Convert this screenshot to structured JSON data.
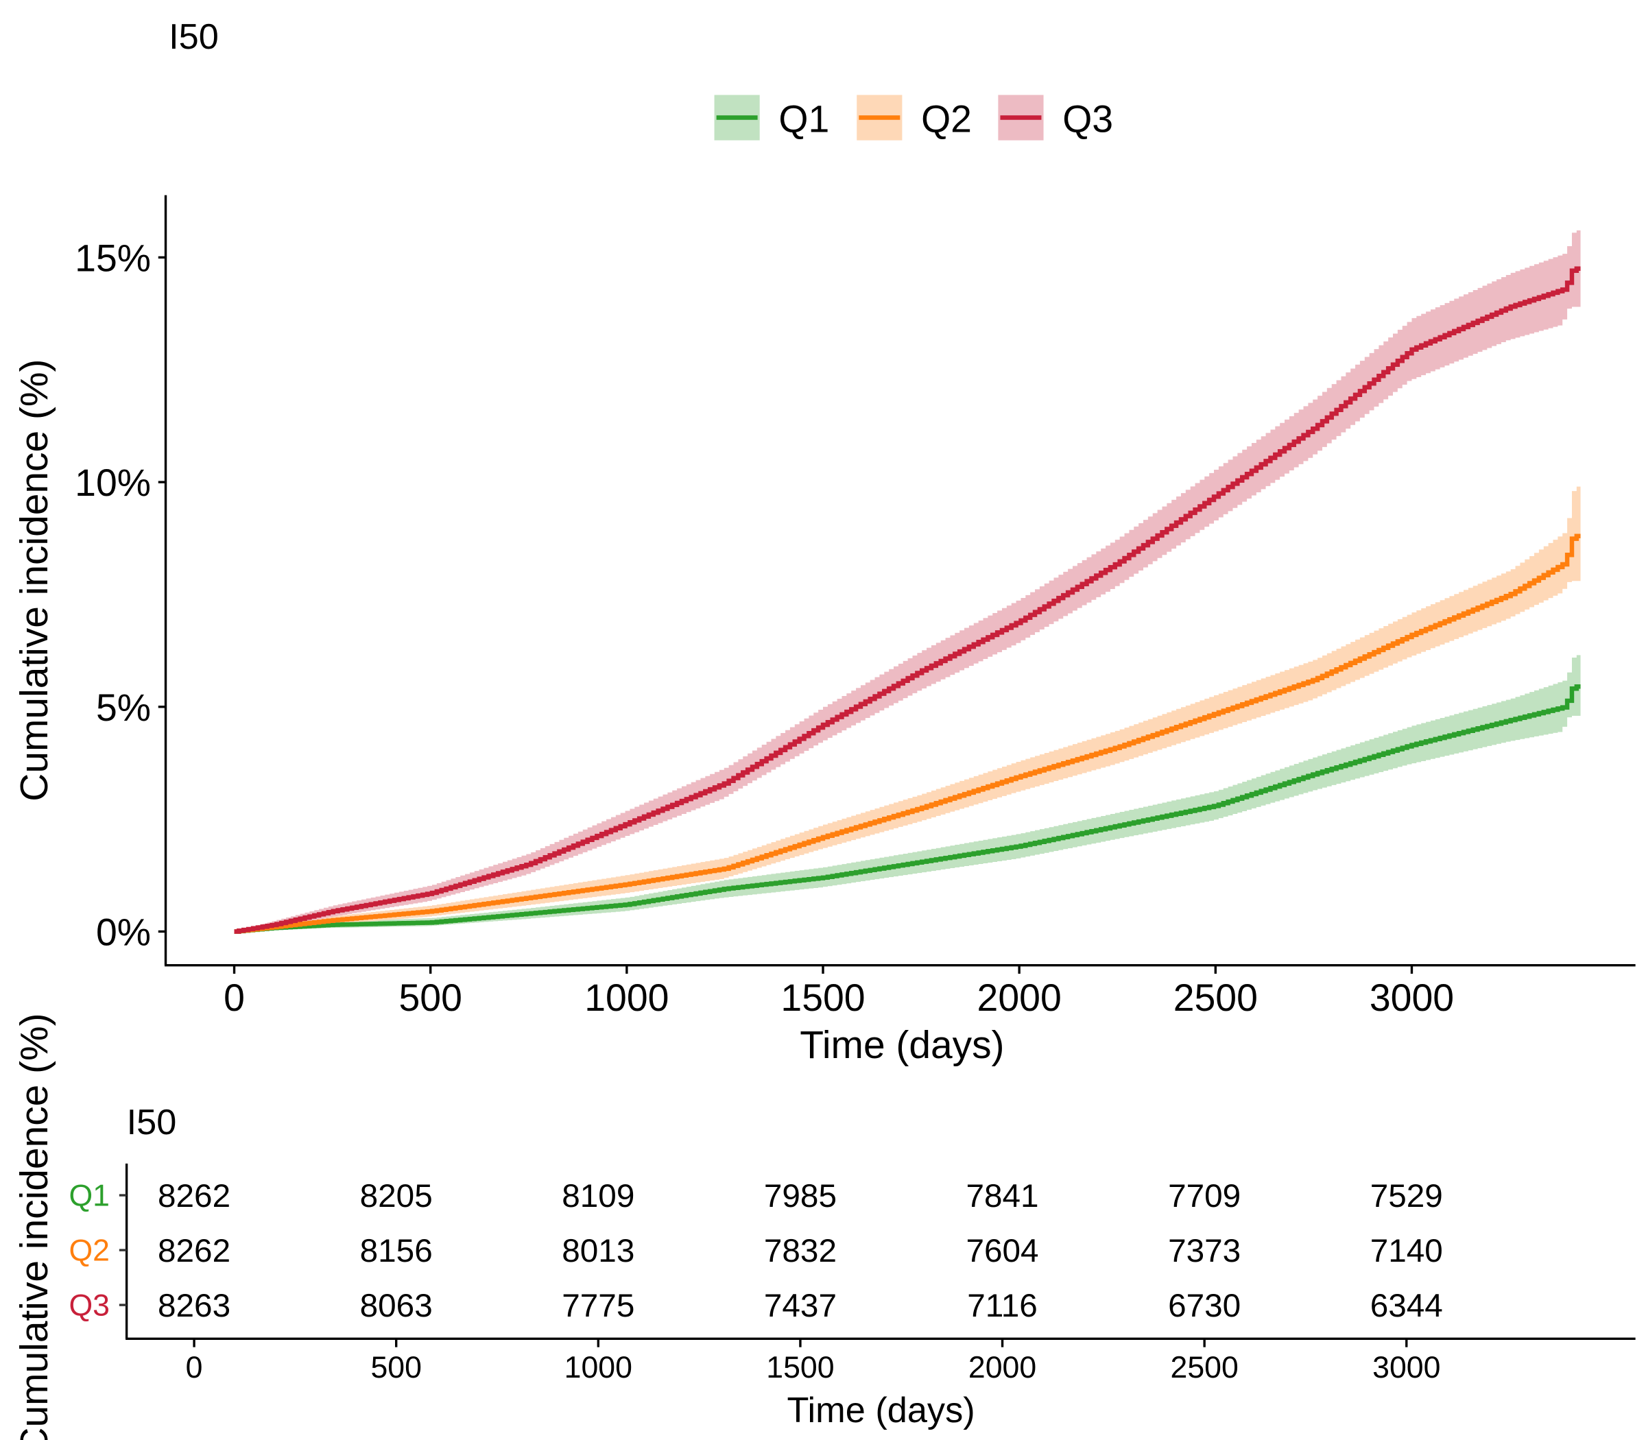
{
  "chart_data": [
    {
      "type": "line",
      "title": "I50",
      "xlabel": "Time (days)",
      "ylabel": "Cumulative incidence (%)",
      "xlim": [
        -170,
        3550
      ],
      "ylim": [
        -0.75,
        16.4
      ],
      "x_ticks": [
        0,
        500,
        1000,
        1500,
        2000,
        2500,
        3000
      ],
      "x_tick_labels": [
        "0",
        "500",
        "1000",
        "1500",
        "2000",
        "2500",
        "3000"
      ],
      "y_ticks": [
        0,
        5,
        10,
        15
      ],
      "y_tick_labels": [
        "0%",
        "5%",
        "10%",
        "15%"
      ],
      "grid": false,
      "legend_position": "top",
      "step": true,
      "confidence_bands": true,
      "series": [
        {
          "name": "Q1",
          "color": "#2CA02C",
          "band_color": "#C1E2C1",
          "x": [
            0,
            100,
            250,
            500,
            750,
            1000,
            1250,
            1500,
            1750,
            2000,
            2250,
            2500,
            2750,
            3000,
            3250,
            3390,
            3410,
            3430
          ],
          "y": [
            0,
            0.08,
            0.15,
            0.2,
            0.4,
            0.6,
            0.95,
            1.2,
            1.55,
            1.9,
            2.35,
            2.8,
            3.5,
            4.15,
            4.7,
            5.0,
            5.45,
            5.45
          ],
          "lower": [
            0,
            0.03,
            0.08,
            0.12,
            0.28,
            0.45,
            0.75,
            0.98,
            1.3,
            1.62,
            2.05,
            2.47,
            3.12,
            3.72,
            4.22,
            4.45,
            4.8,
            4.8
          ],
          "upper": [
            0,
            0.14,
            0.22,
            0.3,
            0.52,
            0.76,
            1.15,
            1.43,
            1.8,
            2.18,
            2.65,
            3.13,
            3.88,
            4.58,
            5.18,
            5.6,
            6.15,
            6.15
          ]
        },
        {
          "name": "Q2",
          "color": "#FF7F0E",
          "band_color": "#FED8B7",
          "x": [
            0,
            100,
            250,
            500,
            750,
            1000,
            1250,
            1500,
            1750,
            2000,
            2250,
            2500,
            2750,
            3000,
            3250,
            3390,
            3410,
            3430
          ],
          "y": [
            0,
            0.1,
            0.25,
            0.45,
            0.75,
            1.05,
            1.4,
            2.1,
            2.75,
            3.45,
            4.1,
            4.85,
            5.6,
            6.6,
            7.5,
            8.2,
            8.8,
            8.8
          ],
          "lower": [
            0,
            0.04,
            0.16,
            0.33,
            0.58,
            0.85,
            1.17,
            1.83,
            2.44,
            3.1,
            3.72,
            4.43,
            5.15,
            6.1,
            6.95,
            7.55,
            7.8,
            7.8
          ],
          "upper": [
            0,
            0.16,
            0.34,
            0.58,
            0.92,
            1.26,
            1.64,
            2.38,
            3.06,
            3.8,
            4.48,
            5.27,
            6.05,
            7.1,
            8.05,
            8.9,
            9.9,
            9.9
          ]
        },
        {
          "name": "Q3",
          "color": "#C8203A",
          "band_color": "#EDBBC3",
          "x": [
            0,
            100,
            250,
            500,
            750,
            1000,
            1250,
            1500,
            1750,
            2000,
            2250,
            2500,
            2750,
            3000,
            3250,
            3390,
            3410,
            3430
          ],
          "y": [
            0,
            0.15,
            0.45,
            0.85,
            1.5,
            2.4,
            3.3,
            4.6,
            5.8,
            6.9,
            8.2,
            9.7,
            11.2,
            12.95,
            13.9,
            14.3,
            14.75,
            14.75
          ],
          "lower": [
            0,
            0.06,
            0.32,
            0.67,
            1.26,
            2.1,
            2.95,
            4.2,
            5.35,
            6.4,
            7.65,
            9.1,
            10.55,
            12.25,
            13.15,
            13.5,
            13.9,
            13.9
          ],
          "upper": [
            0,
            0.24,
            0.58,
            1.03,
            1.74,
            2.7,
            3.65,
            5.0,
            6.25,
            7.4,
            8.75,
            10.3,
            11.85,
            13.65,
            14.65,
            15.1,
            15.6,
            15.6
          ]
        }
      ]
    },
    {
      "type": "table",
      "title": "I50",
      "xlabel": "Time (days)",
      "ylabel": "Cumulative incidence (%)",
      "x_ticks": [
        0,
        500,
        1000,
        1500,
        2000,
        2500,
        3000
      ],
      "x_tick_labels": [
        "0",
        "500",
        "1000",
        "1500",
        "2000",
        "2500",
        "3000"
      ],
      "rows": [
        {
          "name": "Q1",
          "color": "#2CA02C",
          "values": [
            "8262",
            "8205",
            "8109",
            "7985",
            "7841",
            "7709",
            "7529"
          ]
        },
        {
          "name": "Q2",
          "color": "#FF7F0E",
          "values": [
            "8262",
            "8156",
            "8013",
            "7832",
            "7604",
            "7373",
            "7140"
          ]
        },
        {
          "name": "Q3",
          "color": "#C8203A",
          "values": [
            "8263",
            "8063",
            "7775",
            "7437",
            "7116",
            "6730",
            "6344"
          ]
        }
      ]
    }
  ]
}
